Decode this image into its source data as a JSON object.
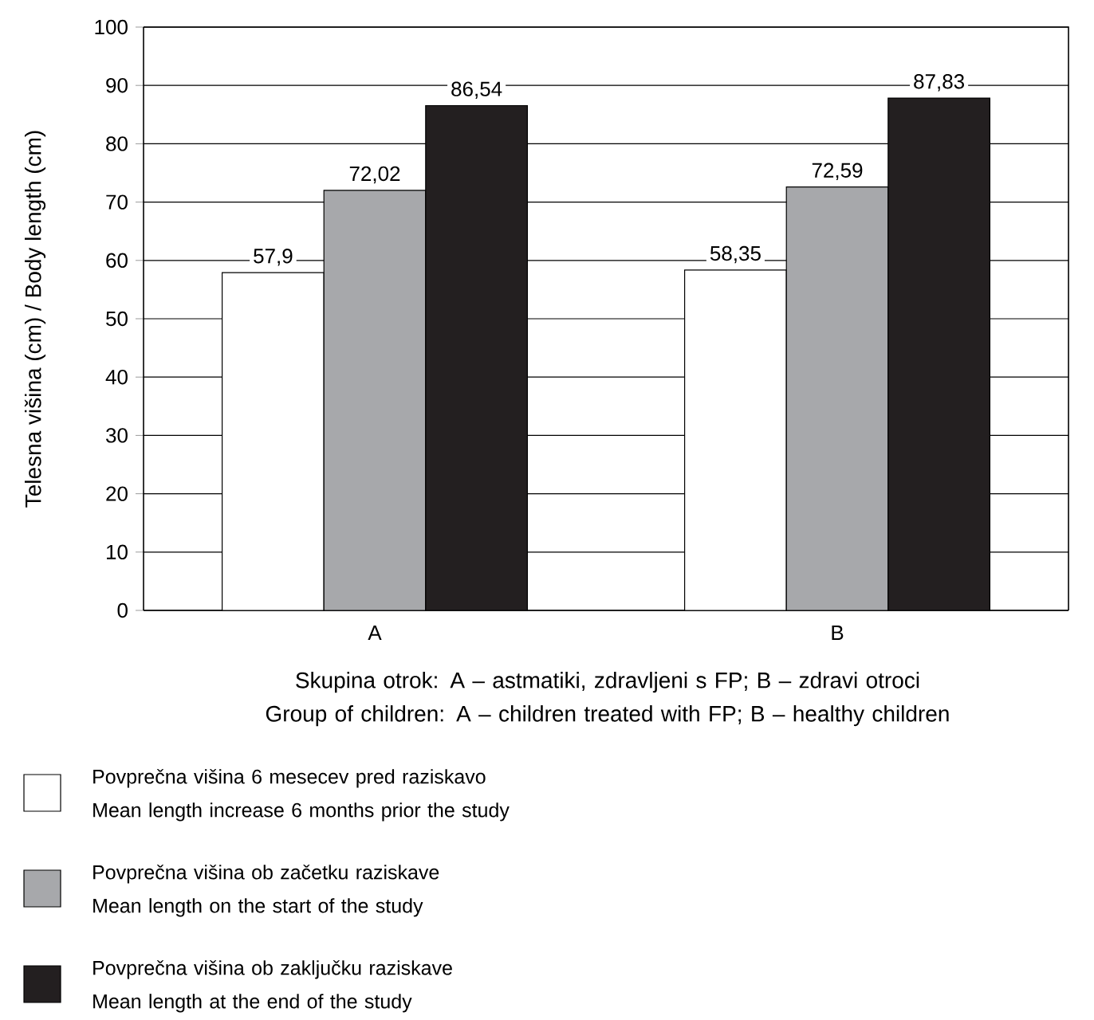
{
  "chart_data": {
    "type": "bar",
    "categories": [
      "A",
      "B"
    ],
    "xlabel": "Skupina otrok: A – astmatiki, zdravljeni s FP; B – zdravi otroci\nGroup of children: A – children treated with FP; B – healthy children",
    "ylabel": "Telesna višina (cm) / Body length (cm)",
    "ylim": [
      0,
      100
    ],
    "yticks": [
      0,
      10,
      20,
      30,
      40,
      50,
      60,
      70,
      80,
      90,
      100
    ],
    "grid": "y",
    "legend": "bottom",
    "series": [
      {
        "name": "Povprečna višina 6 mesecev pred raziskavo\nMean length increase 6 months prior the study",
        "color": "#ffffff",
        "values": [
          57.9,
          58.35
        ],
        "value_labels": [
          "57,9",
          "58,35"
        ]
      },
      {
        "name": "Povprečna višina ob začetku raziskave\nMean length on the start of the study",
        "color": "#a7a8ab",
        "values": [
          72.02,
          72.59
        ],
        "value_labels": [
          "72,02",
          "72,59"
        ]
      },
      {
        "name": "Povprečna višina ob zaključku raziskave\nMean length at the end of the study",
        "color": "#231f20",
        "values": [
          86.54,
          87.83
        ],
        "value_labels": [
          "86,54",
          "87,83"
        ]
      }
    ]
  }
}
